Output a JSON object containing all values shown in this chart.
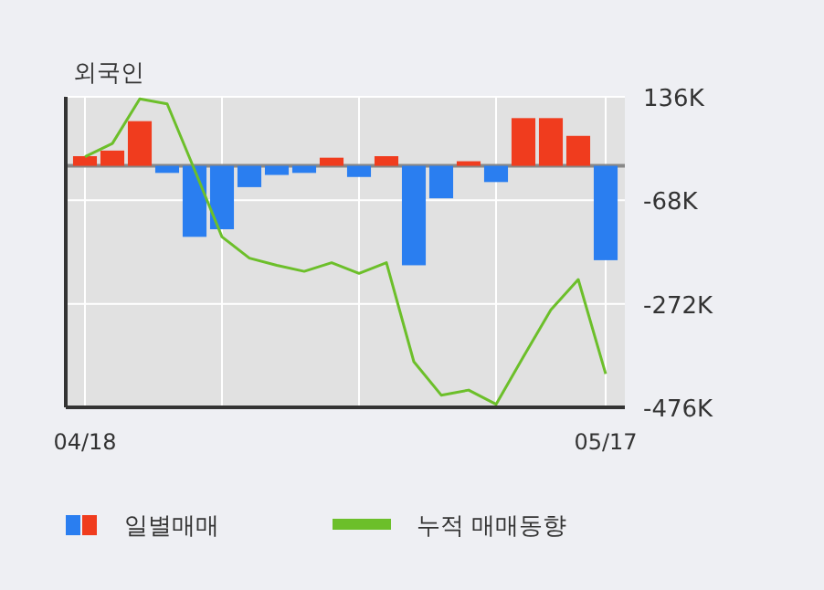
{
  "chart_data": {
    "type": "bar",
    "title": "외국인",
    "categories": [
      "04/18",
      null,
      null,
      null,
      null,
      null,
      null,
      null,
      null,
      null,
      null,
      null,
      null,
      null,
      null,
      null,
      null,
      null,
      null,
      "05/17"
    ],
    "series": [
      {
        "name": "일별매매",
        "colors": [
          "#f03c1e",
          "#f03c1e",
          "#f03c1e",
          "#2a7ef0",
          "#2a7ef0",
          "#2a7ef0",
          "#2a7ef0",
          "#2a7ef0",
          "#2a7ef0",
          "#f03c1e",
          "#2a7ef0",
          "#f03c1e",
          "#2a7ef0",
          "#2a7ef0",
          "#f03c1e",
          "#2a7ef0",
          "#f03c1e",
          "#f03c1e",
          "#f03c1e",
          "#2a7ef0"
        ],
        "values": [
          19,
          30,
          88,
          -14,
          -140,
          -125,
          -42,
          -18,
          -14,
          16,
          -22,
          19,
          -196,
          -64,
          9,
          -32,
          94,
          94,
          59,
          -186
        ]
      },
      {
        "name": "누적 매매동향",
        "type": "line",
        "color": "#6cbf2a",
        "values": [
          18,
          44,
          132,
          122,
          -8,
          -140,
          -182,
          -196,
          -208,
          -191,
          -212,
          -191,
          -386,
          -452,
          -442,
          -470,
          -376,
          -284,
          -224,
          -410
        ]
      }
    ],
    "ylim": [
      -476,
      136
    ],
    "yticks": [
      {
        "value": 136,
        "label": "136K"
      },
      {
        "value": -68,
        "label": "-68K"
      },
      {
        "value": -272,
        "label": "-272K"
      },
      {
        "value": -476,
        "label": "-476K"
      }
    ],
    "ref_lines": [
      {
        "axis": "y",
        "value": 0,
        "color": "#888888"
      }
    ],
    "grid": true,
    "legend": "bottom"
  }
}
